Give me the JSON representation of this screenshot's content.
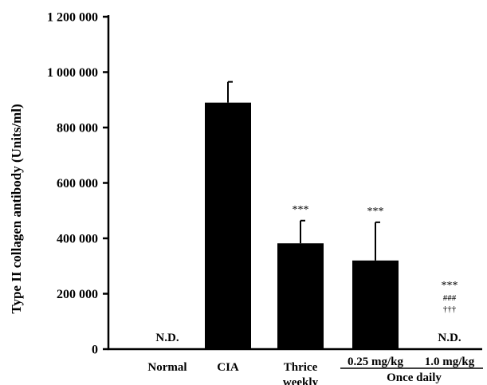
{
  "chart_data": {
    "type": "bar",
    "title": "",
    "ylabel": "Type II collagen antibody (Units/ml)",
    "xlabel": "",
    "ylim": [
      0,
      1200000
    ],
    "yticks": [
      {
        "value": 0,
        "label": "0"
      },
      {
        "value": 200000,
        "label": "200 000"
      },
      {
        "value": 400000,
        "label": "400 000"
      },
      {
        "value": 600000,
        "label": "600 000"
      },
      {
        "value": 800000,
        "label": "800 000"
      },
      {
        "value": 1000000,
        "label": "1 000 000"
      },
      {
        "value": 1200000,
        "label": "1 200 000"
      }
    ],
    "categories": [
      {
        "id": "normal",
        "lines": [
          "Normal"
        ]
      },
      {
        "id": "cia",
        "lines": [
          "CIA"
        ]
      },
      {
        "id": "thrice",
        "lines": [
          "Thrice",
          "weekly"
        ]
      },
      {
        "id": "dose025",
        "lines": [
          "0.25 mg/kg"
        ]
      },
      {
        "id": "dose10",
        "lines": [
          "1.0 mg/kg"
        ]
      }
    ],
    "values": [
      null,
      890000,
      382000,
      320000,
      null
    ],
    "errors": [
      null,
      75000,
      82000,
      138000,
      null
    ],
    "not_detected_label": "N.D.",
    "not_detected": [
      true,
      false,
      false,
      false,
      true
    ],
    "significance": [
      [],
      [],
      [
        "***"
      ],
      [
        "***"
      ],
      [
        "***",
        "###",
        "†††"
      ]
    ],
    "group_label": "Once daily",
    "group_categories": [
      3,
      4
    ],
    "bar_color": "#000000"
  }
}
